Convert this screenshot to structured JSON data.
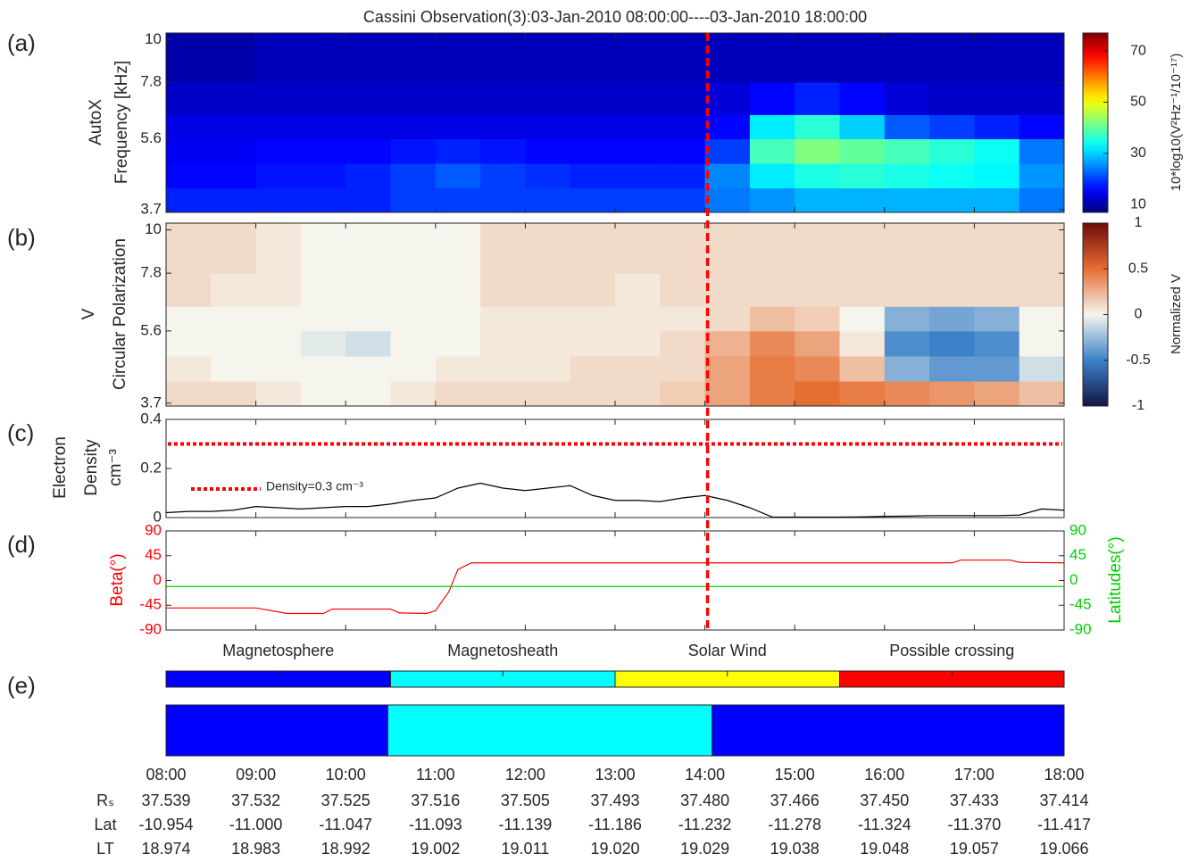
{
  "figure": {
    "title": "Cassini Observation(3):03-Jan-2010 08:00:00----03-Jan-2010 18:00:00",
    "xlim": [
      8,
      18
    ],
    "xticks": [
      {
        "value": 8,
        "label": "08:00"
      },
      {
        "value": 9,
        "label": "09:00"
      },
      {
        "value": 10,
        "label": "10:00"
      },
      {
        "value": 11,
        "label": "11:00"
      },
      {
        "value": 12,
        "label": "12:00"
      },
      {
        "value": 13,
        "label": "13:00"
      },
      {
        "value": 14,
        "label": "14:00"
      },
      {
        "value": 15,
        "label": "15:00"
      },
      {
        "value": 16,
        "label": "16:00"
      },
      {
        "value": 17,
        "label": "17:00"
      },
      {
        "value": 18,
        "label": "18:00"
      }
    ],
    "event_line": {
      "x": 14.03,
      "color": "#ff0000"
    }
  },
  "chart_data": [
    {
      "type": "heatmap",
      "label": "(a)",
      "ylabel": [
        "AutoX",
        "Frequency [kHz]"
      ],
      "yscale": "log",
      "ylim": [
        3.64,
        10.4
      ],
      "yticks": [
        3.7,
        5.6,
        7.8,
        10
      ],
      "x_bins": [
        8,
        8.5,
        9,
        9.5,
        10,
        10.5,
        11,
        11.5,
        12,
        12.5,
        13,
        13.5,
        14,
        14.5,
        15,
        15.5,
        16,
        16.5,
        17,
        17.5,
        18
      ],
      "y_bins": [
        3.64,
        4.2,
        4.85,
        5.6,
        6.45,
        7.8,
        10.4
      ],
      "values": [
        [
          18,
          18,
          18,
          18,
          18,
          20,
          20,
          20,
          20,
          20,
          20,
          20,
          24,
          26,
          28,
          28,
          28,
          28,
          28,
          24
        ],
        [
          16,
          16,
          17,
          17,
          18,
          20,
          22,
          20,
          19,
          18,
          18,
          18,
          25,
          32,
          35,
          36,
          35,
          34,
          33,
          26
        ],
        [
          15,
          15,
          16,
          16,
          16,
          17,
          18,
          17,
          16,
          16,
          16,
          16,
          20,
          38,
          42,
          40,
          38,
          36,
          34,
          24
        ],
        [
          14,
          14,
          14,
          14,
          14,
          14,
          14,
          14,
          14,
          14,
          14,
          14,
          16,
          32,
          36,
          30,
          22,
          20,
          18,
          16
        ],
        [
          12,
          12,
          12,
          12,
          12,
          12,
          12,
          12,
          12,
          12,
          12,
          12,
          13,
          16,
          18,
          16,
          13,
          12,
          12,
          12
        ],
        [
          10,
          10,
          11,
          11,
          11,
          11,
          11,
          11,
          11,
          11,
          11,
          11,
          11,
          11,
          11,
          11,
          11,
          11,
          11,
          11
        ]
      ],
      "colorbar": {
        "colormap": "jet",
        "clim": [
          7,
          77
        ],
        "ticks": [
          10,
          30,
          50,
          70
        ],
        "label": "10*log10(V²Hz⁻¹/10⁻¹⁷)"
      }
    },
    {
      "type": "heatmap",
      "label": "(b)",
      "ylabel": [
        "V",
        "Circular Polarization"
      ],
      "yscale": "log",
      "ylim": [
        3.64,
        10.4
      ],
      "yticks": [
        3.7,
        5.6,
        7.8,
        10
      ],
      "x_bins": [
        8,
        8.5,
        9,
        9.5,
        10,
        10.5,
        11,
        11.5,
        12,
        12.5,
        13,
        13.5,
        14,
        14.5,
        15,
        15.5,
        16,
        16.5,
        17,
        17.5,
        18
      ],
      "y_bins": [
        3.64,
        4.2,
        4.85,
        5.6,
        6.45,
        7.8,
        10.4
      ],
      "values": [
        [
          0.1,
          0.1,
          0.05,
          0,
          0,
          0.05,
          0.1,
          0.1,
          0.1,
          0.1,
          0.1,
          0.15,
          0.3,
          0.45,
          0.5,
          0.45,
          0.4,
          0.35,
          0.3,
          0.2
        ],
        [
          0.05,
          0,
          0,
          0,
          0,
          0,
          0.05,
          0.05,
          0.05,
          0.1,
          0.1,
          0.1,
          0.3,
          0.45,
          0.4,
          0.2,
          -0.3,
          -0.4,
          -0.4,
          -0.1
        ],
        [
          0,
          0,
          0,
          -0.05,
          -0.1,
          0,
          0,
          0.05,
          0.05,
          0.05,
          0.05,
          0.1,
          0.25,
          0.4,
          0.3,
          0.05,
          -0.45,
          -0.5,
          -0.45,
          0
        ],
        [
          0,
          0,
          0,
          0,
          0,
          0,
          0,
          0.05,
          0.05,
          0.05,
          0.05,
          0.05,
          0.1,
          0.2,
          0.15,
          0,
          -0.3,
          -0.35,
          -0.3,
          0
        ],
        [
          0.1,
          0.05,
          0.05,
          0,
          0,
          0,
          0,
          0.1,
          0.1,
          0.1,
          0.05,
          0.1,
          0.1,
          0.1,
          0.1,
          0.1,
          0.1,
          0.1,
          0.1,
          0.1
        ],
        [
          0.1,
          0.1,
          0.05,
          0,
          0,
          0,
          0,
          0.1,
          0.1,
          0.1,
          0.1,
          0.1,
          0.1,
          0.1,
          0.1,
          0.1,
          0.1,
          0.1,
          0.1,
          0.1
        ]
      ],
      "colorbar": {
        "colormap": "diverging",
        "clim": [
          -1,
          1
        ],
        "ticks": [
          -1,
          -0.5,
          0,
          0.5,
          1
        ],
        "label": "Normalized V"
      }
    },
    {
      "type": "line",
      "label": "(c)",
      "ylabel": [
        "Electron",
        "Density",
        "cm⁻³"
      ],
      "ylim": [
        0,
        0.4
      ],
      "yticks": [
        0,
        0.2,
        0.4
      ],
      "x": [
        8,
        8.25,
        8.5,
        8.75,
        9,
        9.25,
        9.5,
        9.75,
        10,
        10.25,
        10.5,
        10.75,
        11,
        11.25,
        11.5,
        11.75,
        12,
        12.25,
        12.5,
        12.75,
        13,
        13.25,
        13.5,
        13.75,
        14,
        14.25,
        14.5,
        14.75,
        15,
        15.25,
        15.5,
        15.75,
        16,
        16.25,
        16.5,
        16.75,
        17,
        17.25,
        17.5,
        17.75,
        18
      ],
      "series": [
        {
          "color": "#000000",
          "values": [
            0.02,
            0.025,
            0.025,
            0.03,
            0.045,
            0.04,
            0.035,
            0.04,
            0.045,
            0.045,
            0.055,
            0.07,
            0.08,
            0.12,
            0.14,
            0.12,
            0.11,
            0.12,
            0.13,
            0.09,
            0.07,
            0.07,
            0.065,
            0.08,
            0.09,
            0.07,
            0.04,
            0.002,
            0.002,
            0.002,
            0.002,
            0.003,
            0.005,
            0.006,
            0.008,
            0.008,
            0.008,
            0.008,
            0.01,
            0.035,
            0.03
          ]
        }
      ],
      "hline": {
        "value": 0.3,
        "name": "Density=0.3 cm⁻³",
        "color": "#ff0000"
      }
    },
    {
      "type": "dual-line",
      "label": "(d)",
      "ylabel": "Beta(°)",
      "y2label": "Latitudes(°)",
      "ylim": [
        -90,
        90
      ],
      "yticks": [
        -90,
        -45,
        0,
        45,
        90
      ],
      "y2lim": [
        -90,
        90
      ],
      "y2ticks": [
        -90,
        -45,
        0,
        45,
        90
      ],
      "series": [
        {
          "color": "#ff0000",
          "x": [
            8,
            9,
            9.35,
            9.75,
            9.85,
            10.5,
            10.6,
            10.9,
            11,
            11.15,
            11.25,
            11.4,
            16.75,
            16.85,
            17.4,
            17.5,
            18
          ],
          "values": [
            -50,
            -50,
            -60,
            -60,
            -52,
            -52,
            -59,
            -60,
            -55,
            -20,
            20,
            32,
            32,
            37,
            37,
            33,
            32
          ]
        },
        {
          "color": "#00d000",
          "axis": "y2",
          "x": [
            8,
            18
          ],
          "values": [
            -11,
            -11
          ]
        }
      ]
    },
    {
      "type": "bands",
      "label": "(e)",
      "rows": [
        [
          {
            "start": 8,
            "end": 10.5,
            "color": "#0000ff",
            "label": "Magnetosphere"
          },
          {
            "start": 10.5,
            "end": 13,
            "color": "#00ffff",
            "label": "Magnetosheath"
          },
          {
            "start": 13,
            "end": 15.5,
            "color": "#ffff00",
            "label": "Solar Wind"
          },
          {
            "start": 15.5,
            "end": 18,
            "color": "#ff0000",
            "label": "Possible crossing"
          }
        ],
        [
          {
            "start": 8,
            "end": 10.47,
            "color": "#0000ff"
          },
          {
            "start": 10.47,
            "end": 14.08,
            "color": "#00ffff"
          },
          {
            "start": 14.08,
            "end": 18,
            "color": "#0000ff"
          }
        ]
      ]
    }
  ],
  "table": {
    "row_labels": [
      "Rₛ",
      "Lat",
      "LT"
    ],
    "rows": [
      [
        "37.539",
        "37.532",
        "37.525",
        "37.516",
        "37.505",
        "37.493",
        "37.480",
        "37.466",
        "37.450",
        "37.433",
        "37.414"
      ],
      [
        "-10.954",
        "-11.000",
        "-11.047",
        "-11.093",
        "-11.139",
        "-11.186",
        "-11.232",
        "-11.278",
        "-11.324",
        "-11.370",
        "-11.417"
      ],
      [
        "18.974",
        "18.983",
        "18.992",
        "19.002",
        "19.011",
        "19.020",
        "19.029",
        "19.038",
        "19.048",
        "19.057",
        "19.066"
      ]
    ]
  }
}
